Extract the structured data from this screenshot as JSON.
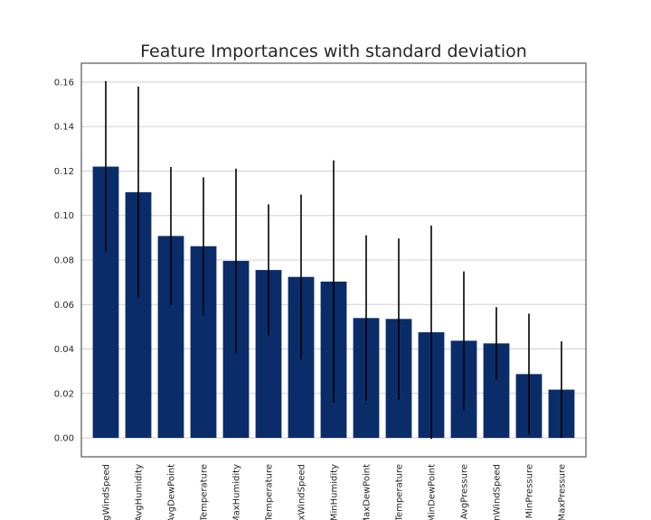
{
  "chart_data": {
    "type": "bar",
    "title": "Feature Importances with standard deviation",
    "xlabel": "",
    "ylabel": "",
    "categories": [
      "AvgWindSpeed",
      "AvgHumidity",
      "AvgDewPoint",
      "AvgTemperature",
      "MaxHumidity",
      "MaxTemperature",
      "MaxWindSpeed",
      "MinHumidity",
      "MaxDewPoint",
      "MinTemperature",
      "MinDewPoint",
      "AvgPressure",
      "MinWindSpeed",
      "MinPressure",
      "MaxPressure"
    ],
    "values": [
      0.122,
      0.1105,
      0.0908,
      0.0862,
      0.0796,
      0.0755,
      0.0724,
      0.0703,
      0.0539,
      0.0535,
      0.0475,
      0.0437,
      0.0425,
      0.0287,
      0.0217
    ],
    "errors": [
      0.0385,
      0.0475,
      0.031,
      0.031,
      0.0415,
      0.0295,
      0.037,
      0.0545,
      0.0372,
      0.0362,
      0.048,
      0.0312,
      0.0163,
      0.0272,
      0.0217
    ],
    "ylim": [
      -0.0085,
      0.1685
    ],
    "yticks": [
      0.0,
      0.02,
      0.04,
      0.06,
      0.08,
      0.1,
      0.12,
      0.14,
      0.16
    ],
    "ytick_labels": [
      "0.00",
      "0.02",
      "0.04",
      "0.06",
      "0.08",
      "0.10",
      "0.12",
      "0.14",
      "0.16"
    ],
    "grid": true,
    "bar_color": "#0a2d6a",
    "error_color": "#000000",
    "grid_color": "#d0d0d0",
    "axes_edge_color": "#333333"
  }
}
